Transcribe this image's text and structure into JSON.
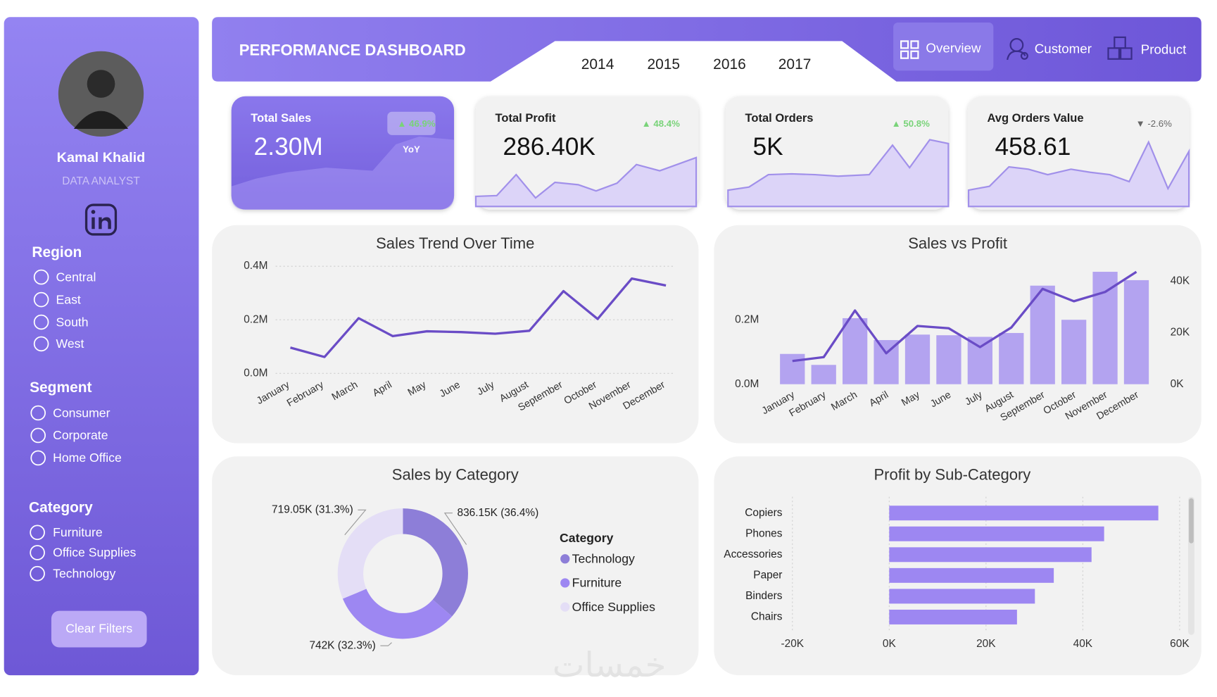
{
  "sidebar": {
    "name": "Kamal Khalid",
    "role": "DATA ANALYST",
    "filters": [
      {
        "title": "Region",
        "options": [
          "Central",
          "East",
          "South",
          "West"
        ]
      },
      {
        "title": "Segment",
        "options": [
          "Consumer",
          "Corporate",
          "Home Office"
        ]
      },
      {
        "title": "Category",
        "options": [
          "Furniture",
          "Office Supplies",
          "Technology"
        ]
      }
    ],
    "button": "Clear Filters"
  },
  "header": {
    "title": "PERFORMANCE DASHBOARD",
    "years": [
      "2014",
      "2015",
      "2016",
      "2017"
    ],
    "nav": [
      "Overview",
      "Customer",
      "Product"
    ]
  },
  "kpis": [
    {
      "title": "Total Sales",
      "value": "2.30M",
      "change": "▲ 46.9%",
      "badge": "YoY"
    },
    {
      "title": "Total Profit",
      "value": "286.40K",
      "change": "▲ 48.4%"
    },
    {
      "title": "Total Orders",
      "value": "5K",
      "change": "▲ 50.8%"
    },
    {
      "title": "Avg Orders Value",
      "value": "458.61",
      "change": "▼ -2.6%"
    }
  ],
  "watermark": "خمسات",
  "chart_data": [
    {
      "type": "line",
      "title": "Sales Trend Over Time",
      "categories": [
        "January",
        "February",
        "March",
        "April",
        "May",
        "June",
        "July",
        "August",
        "September",
        "October",
        "November",
        "December"
      ],
      "series": [
        {
          "name": "Sales",
          "color": "#6a4cc6",
          "values": [
            96000,
            61000,
            206000,
            139000,
            157000,
            154000,
            148000,
            159000,
            307000,
            203000,
            354000,
            328000
          ]
        }
      ],
      "ylim": [
        0,
        400000
      ],
      "yticks": [
        {
          "value": 0,
          "label": "0.0M"
        },
        {
          "value": 200000,
          "label": "0.2M"
        },
        {
          "value": 400000,
          "label": "0.4M"
        }
      ],
      "grid": true
    },
    {
      "type": "combo",
      "title": "Sales vs Profit",
      "categories": [
        "January",
        "February",
        "March",
        "April",
        "May",
        "June",
        "July",
        "August",
        "September",
        "October",
        "November",
        "December"
      ],
      "series": [
        {
          "name": "Sales",
          "color": "#b3a3f0",
          "values": [
            94000,
            60000,
            205000,
            137000,
            154000,
            152000,
            147000,
            159000,
            306000,
            200000,
            349000,
            323000
          ]
        },
        {
          "name": "Profit",
          "color": "#6a4cc6",
          "axis": "y2",
          "values": [
            9000,
            10500,
            28600,
            12000,
            22600,
            21700,
            14400,
            22000,
            37000,
            32200,
            35800,
            43600
          ]
        }
      ],
      "ylim": [
        0,
        360000
      ],
      "yticks": [
        {
          "value": 0,
          "label": "0.0M"
        },
        {
          "value": 200000,
          "label": "0.2M"
        }
      ],
      "y2lim": [
        0,
        45000
      ],
      "y2ticks": [
        {
          "value": 0,
          "label": "0K"
        },
        {
          "value": 20000,
          "label": "20K"
        },
        {
          "value": 40000,
          "label": "40K"
        }
      ]
    },
    {
      "type": "donut",
      "title": "Sales by Category",
      "legend_title": "Category",
      "categories": [
        "Technology",
        "Furniture",
        "Office Supplies"
      ],
      "values": [
        836150,
        742000,
        719050
      ],
      "value_labels": [
        "836.15K (36.4%)",
        "742K (32.3%)",
        "719.05K (31.3%)"
      ],
      "colors": [
        "#8d7ed8",
        "#9d87f2",
        "#e4def6"
      ]
    },
    {
      "type": "hbar",
      "title": "Profit by Sub-Category",
      "categories": [
        "Copiers",
        "Phones",
        "Accessories",
        "Paper",
        "Binders",
        "Chairs"
      ],
      "values": [
        55600,
        44400,
        41800,
        34000,
        30100,
        26400
      ],
      "color": "#9d87f2",
      "xlim": [
        -20000,
        60000
      ],
      "xticks": [
        {
          "value": -20000,
          "label": "-20K"
        },
        {
          "value": 0,
          "label": "0K"
        },
        {
          "value": 20000,
          "label": "20K"
        },
        {
          "value": 40000,
          "label": "40K"
        },
        {
          "value": 60000,
          "label": "60K"
        }
      ],
      "grid": true
    }
  ]
}
